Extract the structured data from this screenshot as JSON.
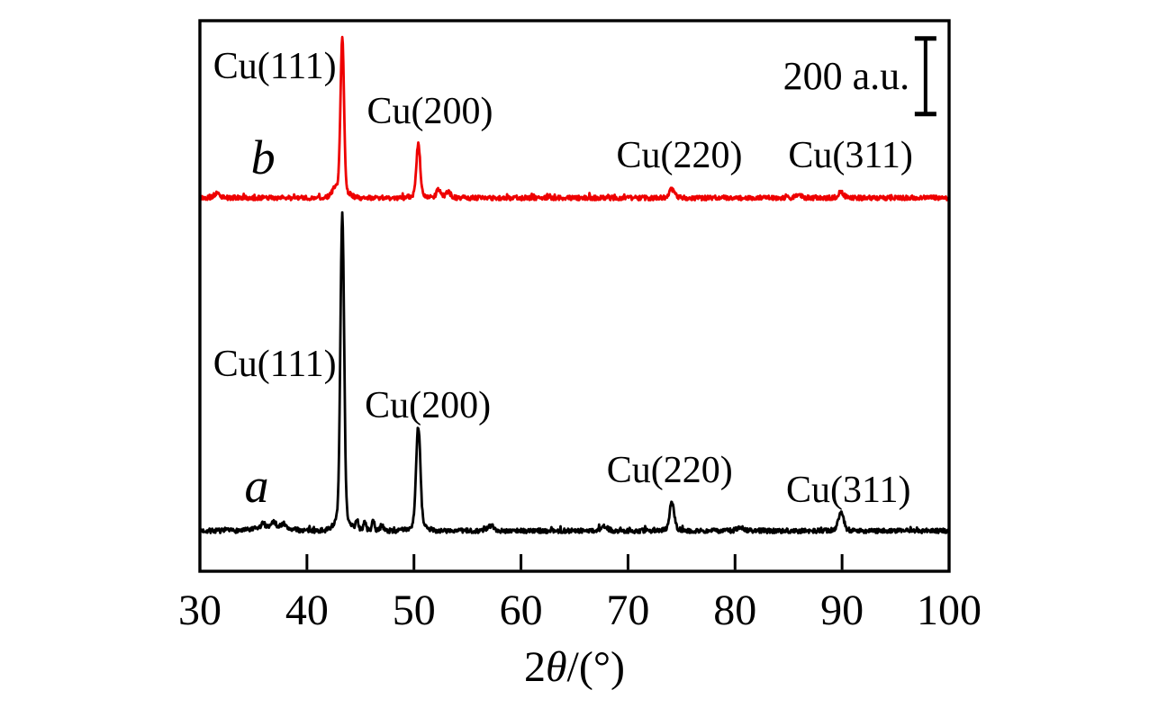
{
  "page": {
    "background": "#ffffff",
    "axis_color": "#000000"
  },
  "chart_data": {
    "type": "line",
    "title": "",
    "xlabel": "2θ/(°)",
    "xlabel_parts": {
      "pre": "2",
      "theta": "θ",
      "post": "/(°)"
    },
    "ylabel": "",
    "x_range": [
      30,
      100
    ],
    "x_ticks": [
      30,
      40,
      50,
      60,
      70,
      80,
      90,
      100
    ],
    "y_range_au": [
      0,
      1457
    ],
    "grid": false,
    "legend": false,
    "scale_bar": {
      "label": "200 a.u.",
      "value_au": 200,
      "x_deg": 97.8,
      "y_center_au": 1310,
      "label_x_deg": 90.4,
      "label_y_au": 1310
    },
    "series": [
      {
        "id": "a",
        "label": "a",
        "color": "#000000",
        "baseline_au": 107,
        "noise_amplitude_au": 6,
        "seed": 7,
        "peaks": [
          {
            "label": "Cu(111)",
            "two_theta_deg": 43.3,
            "height_au": 790,
            "sigma_deg": 0.17
          },
          {
            "label": "Cu(200)",
            "two_theta_deg": 50.4,
            "height_au": 260,
            "sigma_deg": 0.2
          },
          {
            "label": "Cu(220)",
            "two_theta_deg": 74.1,
            "height_au": 70,
            "sigma_deg": 0.22
          },
          {
            "label": "Cu(311)",
            "two_theta_deg": 89.9,
            "height_au": 48,
            "sigma_deg": 0.24
          }
        ],
        "minor_features": [
          {
            "two_theta_deg": 36.8,
            "height_au": 12,
            "sigma_deg": 1.2
          },
          {
            "two_theta_deg": 35.9,
            "height_au": 10,
            "sigma_deg": 0.15
          },
          {
            "two_theta_deg": 36.9,
            "height_au": 12,
            "sigma_deg": 0.15
          },
          {
            "two_theta_deg": 37.8,
            "height_au": 10,
            "sigma_deg": 0.15
          },
          {
            "two_theta_deg": 44.7,
            "height_au": 26,
            "sigma_deg": 0.12
          },
          {
            "two_theta_deg": 45.4,
            "height_au": 22,
            "sigma_deg": 0.12
          },
          {
            "two_theta_deg": 46.2,
            "height_au": 24,
            "sigma_deg": 0.12
          },
          {
            "two_theta_deg": 47.0,
            "height_au": 16,
            "sigma_deg": 0.12
          },
          {
            "two_theta_deg": 57.2,
            "height_au": 12,
            "sigma_deg": 0.3
          },
          {
            "two_theta_deg": 67.8,
            "height_au": 10,
            "sigma_deg": 0.3
          },
          {
            "two_theta_deg": 80.5,
            "height_au": 9,
            "sigma_deg": 0.3
          }
        ]
      },
      {
        "id": "b",
        "label": "b",
        "color": "#ee0000",
        "baseline_au": 988,
        "noise_amplitude_au": 6,
        "seed": 13,
        "peaks": [
          {
            "label": "Cu(111)",
            "two_theta_deg": 43.3,
            "height_au": 400,
            "sigma_deg": 0.16
          },
          {
            "label": "Cu(200)",
            "two_theta_deg": 50.4,
            "height_au": 134,
            "sigma_deg": 0.18
          },
          {
            "label": "Cu(220)",
            "two_theta_deg": 74.1,
            "height_au": 21,
            "sigma_deg": 0.25
          },
          {
            "label": "Cu(311)",
            "two_theta_deg": 89.9,
            "height_au": 14,
            "sigma_deg": 0.25
          }
        ],
        "minor_features": [
          {
            "two_theta_deg": 31.6,
            "height_au": 12,
            "sigma_deg": 0.25
          },
          {
            "two_theta_deg": 42.6,
            "height_au": 16,
            "sigma_deg": 0.3
          },
          {
            "two_theta_deg": 52.3,
            "height_au": 20,
            "sigma_deg": 0.2
          },
          {
            "two_theta_deg": 53.2,
            "height_au": 14,
            "sigma_deg": 0.25
          },
          {
            "two_theta_deg": 85.9,
            "height_au": 8,
            "sigma_deg": 0.3
          }
        ]
      }
    ],
    "annotations": [
      {
        "name": "peak-label-b-cu111",
        "series": "b",
        "kind": "peak",
        "text": "Cu(111)",
        "x_deg": 37.0,
        "y_au": 1336
      },
      {
        "name": "peak-label-b-cu200",
        "series": "b",
        "kind": "peak",
        "text": "Cu(200)",
        "x_deg": 51.5,
        "y_au": 1217
      },
      {
        "name": "peak-label-b-cu220",
        "series": "b",
        "kind": "peak",
        "text": "Cu(220)",
        "x_deg": 74.8,
        "y_au": 1100
      },
      {
        "name": "peak-label-b-cu311",
        "series": "b",
        "kind": "peak",
        "text": "Cu(311)",
        "x_deg": 90.8,
        "y_au": 1100
      },
      {
        "name": "trace-letter-b",
        "series": "b",
        "kind": "letter",
        "text": "b",
        "x_deg": 35.9,
        "y_au": 1095
      },
      {
        "name": "peak-label-a-cu111",
        "series": "a",
        "kind": "peak",
        "text": "Cu(111)",
        "x_deg": 37.0,
        "y_au": 548
      },
      {
        "name": "peak-label-a-cu200",
        "series": "a",
        "kind": "peak",
        "text": "Cu(200)",
        "x_deg": 51.3,
        "y_au": 438
      },
      {
        "name": "peak-label-a-cu220",
        "series": "a",
        "kind": "peak",
        "text": "Cu(220)",
        "x_deg": 73.9,
        "y_au": 267
      },
      {
        "name": "peak-label-a-cu311",
        "series": "a",
        "kind": "peak",
        "text": "Cu(311)",
        "x_deg": 90.6,
        "y_au": 214
      },
      {
        "name": "trace-letter-a",
        "series": "a",
        "kind": "letter",
        "text": "a",
        "x_deg": 35.3,
        "y_au": 226
      }
    ]
  }
}
